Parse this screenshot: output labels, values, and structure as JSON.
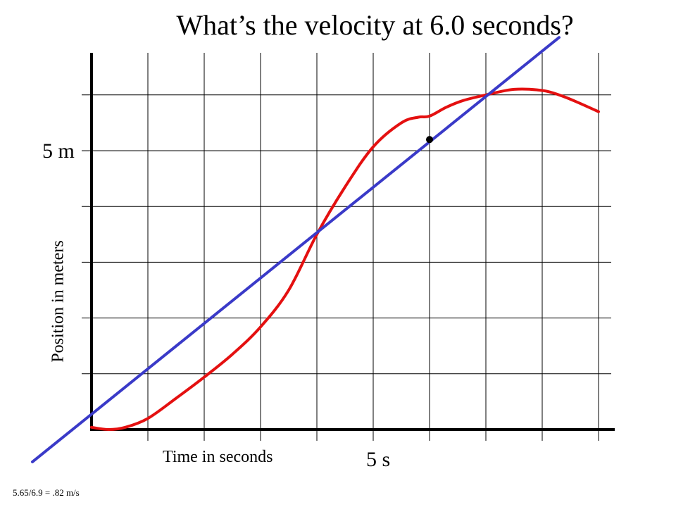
{
  "chart_data": {
    "type": "line",
    "title": "What’s the velocity at 6.0 seconds?",
    "xlabel": "Time in seconds",
    "ylabel": "Position in meters",
    "x_tick_label": "5 s",
    "y_tick_label": "5 m",
    "xlim": [
      0,
      9
    ],
    "ylim": [
      0,
      6.7
    ],
    "grid": true,
    "series": [
      {
        "role": "position curve",
        "color": "#e41010",
        "x": [
          0.0,
          0.3,
          0.6,
          1.0,
          1.5,
          2.0,
          2.5,
          3.0,
          3.5,
          4.0,
          4.5,
          5.0,
          5.5,
          5.8,
          6.0,
          6.3,
          6.6,
          7.0,
          7.5,
          8.0,
          8.3,
          8.6,
          9.0
        ],
        "y": [
          0.04,
          0.0,
          0.04,
          0.2,
          0.56,
          0.94,
          1.35,
          1.84,
          2.5,
          3.5,
          4.35,
          5.07,
          5.5,
          5.6,
          5.62,
          5.78,
          5.9,
          6.0,
          6.1,
          6.08,
          6.0,
          5.88,
          5.7
        ]
      },
      {
        "role": "tangent line",
        "color": "#3a3ac8",
        "x": [
          -1.05,
          8.3
        ],
        "y": [
          -0.58,
          7.03
        ]
      }
    ],
    "point": {
      "x": 6.0,
      "y": 5.2
    },
    "annotation": "5.65/6.9 = .82 m/s"
  }
}
